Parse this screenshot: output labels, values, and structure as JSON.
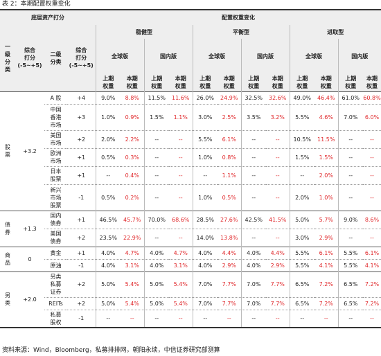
{
  "caption": "表 2：本期配置权重变化",
  "source": "资料来源：Wind，Bloomberg，私募排排网，朝阳永续，中信证券研究部测算",
  "headers": {
    "base": "底层资产打分",
    "change": "配置权重变化",
    "lvl1": [
      "一",
      "级",
      "分",
      "类"
    ],
    "score": [
      "综合",
      "打分",
      "(-5~+5)"
    ],
    "lvl2": [
      "二级",
      "分类"
    ],
    "groups": [
      "稳健型",
      "平衡型",
      "进取型"
    ],
    "versions": [
      "全球版",
      "国内版"
    ],
    "prev": [
      "上期",
      "权重"
    ],
    "curr": [
      "本期",
      "权重"
    ]
  },
  "rows": [
    {
      "name": "A 股",
      "score": "+4",
      "v": [
        "9.0%",
        "8.8%",
        "11.5%",
        "11.6%",
        "26.0%",
        "24.9%",
        "32.5%",
        "32.6%",
        "49.0%",
        "46.4%",
        "61.0%",
        "60.8%"
      ]
    },
    {
      "name": [
        "中国",
        "香港",
        "市场"
      ],
      "score": "+3",
      "v": [
        "1.0%",
        "0.9%",
        "1.5%",
        "1.1%",
        "3.0%",
        "2.5%",
        "3.5%",
        "3.2%",
        "5.5%",
        "4.6%",
        "7.0%",
        "6.0%"
      ]
    },
    {
      "name": [
        "美国",
        "市场"
      ],
      "score": "+2",
      "v": [
        "2.0%",
        "2.2%",
        "--",
        "--",
        "5.5%",
        "6.1%",
        "--",
        "--",
        "10.5%",
        "11.5%",
        "--",
        "--"
      ]
    },
    {
      "name": [
        "欧洲",
        "市场"
      ],
      "score": "+1",
      "v": [
        "0.5%",
        "0.3%",
        "--",
        "--",
        "1.0%",
        "0.8%",
        "--",
        "--",
        "1.5%",
        "1.5%",
        "--",
        "--"
      ]
    },
    {
      "name": [
        "日本",
        "股票"
      ],
      "score": "+1",
      "v": [
        "--",
        "0.4%",
        "--",
        "--",
        "--",
        "1.1%",
        "--",
        "--",
        "--",
        "2.0%",
        "--",
        "--"
      ]
    },
    {
      "name": [
        "新兴",
        "市场",
        "股票"
      ],
      "score": "-1",
      "v": [
        "0.5%",
        "0.2%",
        "--",
        "--",
        "1.0%",
        "0.5%",
        "--",
        "--",
        "2.0%",
        "1.0%",
        "--",
        "--"
      ]
    },
    {
      "name": [
        "国内",
        "债券"
      ],
      "score": "+1",
      "v": [
        "46.5%",
        "45.7%",
        "70.0%",
        "68.6%",
        "28.5%",
        "27.6%",
        "42.5%",
        "41.5%",
        "5.0%",
        "5.7%",
        "9.0%",
        "8.6%"
      ]
    },
    {
      "name": [
        "美国",
        "债券"
      ],
      "score": "+2",
      "v": [
        "23.5%",
        "22.9%",
        "--",
        "--",
        "14.0%",
        "13.8%",
        "--",
        "--",
        "3.0%",
        "2.9%",
        "--",
        "--"
      ]
    },
    {
      "name": "黄金",
      "score": "+1",
      "v": [
        "4.0%",
        "4.7%",
        "4.0%",
        "4.7%",
        "4.0%",
        "4.4%",
        "4.0%",
        "4.4%",
        "5.5%",
        "6.1%",
        "5.5%",
        "6.1%"
      ]
    },
    {
      "name": "原油",
      "score": "-1",
      "v": [
        "4.0%",
        "3.1%",
        "4.0%",
        "3.1%",
        "4.0%",
        "2.9%",
        "4.0%",
        "2.9%",
        "5.5%",
        "4.1%",
        "5.5%",
        "4.1%"
      ]
    },
    {
      "name": [
        "另类",
        "私募",
        "证券"
      ],
      "score": "+2",
      "v": [
        "5.0%",
        "5.4%",
        "5.0%",
        "5.4%",
        "7.0%",
        "7.7%",
        "7.0%",
        "7.7%",
        "6.5%",
        "7.2%",
        "6.5%",
        "7.2%"
      ]
    },
    {
      "name": "REITs",
      "score": "+2",
      "v": [
        "5.0%",
        "5.4%",
        "5.0%",
        "5.4%",
        "7.0%",
        "7.7%",
        "7.0%",
        "7.7%",
        "6.5%",
        "7.2%",
        "6.5%",
        "7.2%"
      ]
    },
    {
      "name": [
        "私募",
        "股权"
      ],
      "score": "-1",
      "v": [
        "--",
        "--",
        "--",
        "--",
        "--",
        "--",
        "--",
        "--",
        "--",
        "--",
        "--",
        "--"
      ]
    }
  ],
  "groups": [
    {
      "name": [
        "股",
        "票"
      ],
      "score": "+3.2"
    },
    {
      "name": [
        "债",
        "券"
      ],
      "score": "+1.3"
    },
    {
      "name": [
        "商",
        "品"
      ],
      "score": "0"
    },
    {
      "name": [
        "另",
        "类"
      ],
      "score": "+2.0"
    }
  ]
}
